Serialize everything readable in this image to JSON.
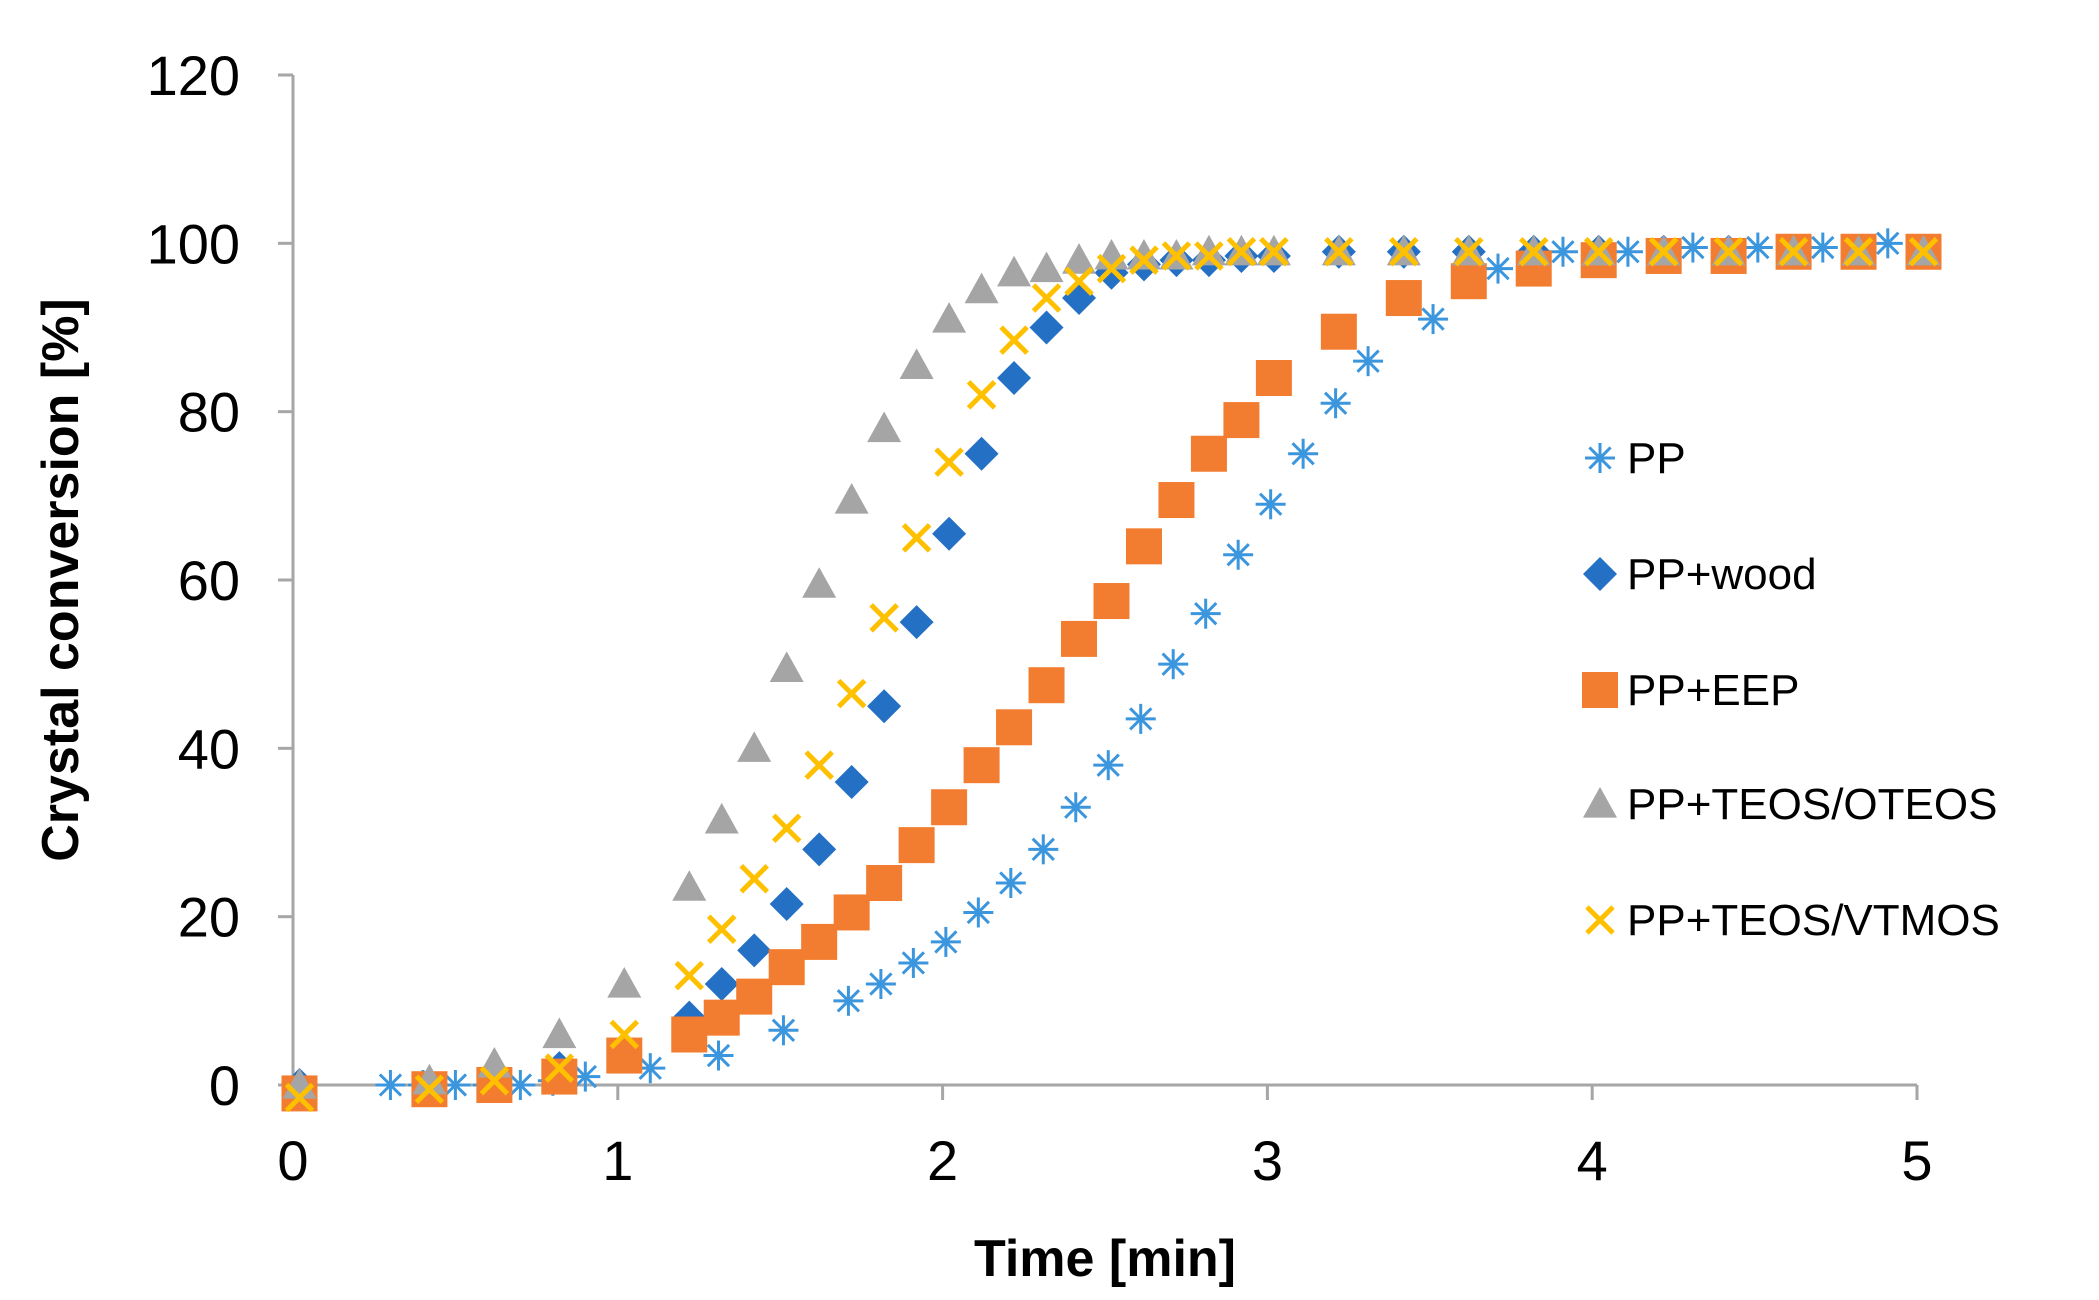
{
  "chart_data": {
    "type": "scatter",
    "title": "",
    "xlabel": "Time [min]",
    "ylabel": "Crystal conversion [%]",
    "xlim": [
      0,
      5
    ],
    "ylim": [
      0,
      120
    ],
    "x_ticks": [
      0,
      1,
      2,
      3,
      4,
      5
    ],
    "y_ticks": [
      0,
      20,
      40,
      60,
      80,
      100,
      120
    ],
    "x_tick_labels": [
      "0",
      "1",
      "2",
      "3",
      "4",
      "5"
    ],
    "y_tick_labels": [
      "0",
      "20",
      "40",
      "60",
      "80",
      "100",
      "120"
    ],
    "grid": false,
    "legend_position": "right",
    "series": [
      {
        "name": "PP",
        "marker": "asterisk",
        "color": "#3b96dd",
        "points": [
          [
            0.3,
            0
          ],
          [
            0.4,
            0
          ],
          [
            0.5,
            0
          ],
          [
            0.6,
            0
          ],
          [
            0.7,
            0
          ],
          [
            0.8,
            0.5
          ],
          [
            0.9,
            1
          ],
          [
            1.1,
            2
          ],
          [
            1.31,
            3.5
          ],
          [
            1.51,
            6.5
          ],
          [
            1.71,
            10
          ],
          [
            1.81,
            12
          ],
          [
            1.91,
            14.5
          ],
          [
            2.01,
            17
          ],
          [
            2.11,
            20.5
          ],
          [
            2.21,
            24
          ],
          [
            2.31,
            28
          ],
          [
            2.41,
            33
          ],
          [
            2.51,
            38
          ],
          [
            2.61,
            43.5
          ],
          [
            2.71,
            50
          ],
          [
            2.81,
            56
          ],
          [
            2.91,
            63
          ],
          [
            3.01,
            69
          ],
          [
            3.11,
            75
          ],
          [
            3.21,
            81
          ],
          [
            3.31,
            86
          ],
          [
            3.51,
            91
          ],
          [
            3.71,
            97
          ],
          [
            3.91,
            99
          ],
          [
            4.11,
            99
          ],
          [
            4.31,
            99.5
          ],
          [
            4.51,
            99.5
          ],
          [
            4.71,
            99.5
          ],
          [
            4.91,
            100
          ]
        ]
      },
      {
        "name": "PP+wood",
        "marker": "diamond",
        "color": "#2370c4",
        "points": [
          [
            0.02,
            0
          ],
          [
            0.42,
            0
          ],
          [
            0.62,
            0.5
          ],
          [
            0.82,
            2
          ],
          [
            1.02,
            4
          ],
          [
            1.22,
            8
          ],
          [
            1.32,
            12
          ],
          [
            1.42,
            16
          ],
          [
            1.52,
            21.5
          ],
          [
            1.62,
            28
          ],
          [
            1.72,
            36
          ],
          [
            1.82,
            45
          ],
          [
            1.92,
            55
          ],
          [
            2.02,
            65.5
          ],
          [
            2.12,
            75
          ],
          [
            2.22,
            84
          ],
          [
            2.32,
            90
          ],
          [
            2.42,
            93.5
          ],
          [
            2.52,
            96.5
          ],
          [
            2.62,
            97.5
          ],
          [
            2.72,
            98
          ],
          [
            2.82,
            98
          ],
          [
            2.92,
            98.5
          ],
          [
            3.02,
            98.5
          ],
          [
            3.22,
            99
          ],
          [
            3.42,
            99
          ],
          [
            3.62,
            99
          ],
          [
            3.82,
            99
          ],
          [
            4.02,
            99
          ],
          [
            4.22,
            99
          ],
          [
            4.42,
            99
          ],
          [
            4.62,
            99
          ],
          [
            4.82,
            99
          ],
          [
            5.02,
            99
          ]
        ]
      },
      {
        "name": "PP+EEP",
        "marker": "square",
        "color": "#f27d30",
        "points": [
          [
            0.02,
            -1
          ],
          [
            0.42,
            -0.5
          ],
          [
            0.62,
            0
          ],
          [
            0.82,
            1
          ],
          [
            1.02,
            3.5
          ],
          [
            1.22,
            6
          ],
          [
            1.32,
            8
          ],
          [
            1.42,
            10.5
          ],
          [
            1.52,
            14
          ],
          [
            1.62,
            17
          ],
          [
            1.72,
            20.5
          ],
          [
            1.82,
            24
          ],
          [
            1.92,
            28.5
          ],
          [
            2.02,
            33
          ],
          [
            2.12,
            38
          ],
          [
            2.22,
            42.5
          ],
          [
            2.32,
            47.5
          ],
          [
            2.42,
            53
          ],
          [
            2.52,
            57.5
          ],
          [
            2.62,
            64
          ],
          [
            2.72,
            69.5
          ],
          [
            2.82,
            75
          ],
          [
            2.92,
            79
          ],
          [
            3.02,
            84
          ],
          [
            3.22,
            89.5
          ],
          [
            3.42,
            93.5
          ],
          [
            3.62,
            95.5
          ],
          [
            3.82,
            97
          ],
          [
            4.02,
            98
          ],
          [
            4.22,
            98.5
          ],
          [
            4.42,
            98.5
          ],
          [
            4.62,
            99
          ],
          [
            4.82,
            99
          ],
          [
            5.02,
            99
          ]
        ]
      },
      {
        "name": "PP+TEOS/OTEOS",
        "marker": "triangle",
        "color": "#a5a5a5",
        "points": [
          [
            0.02,
            0
          ],
          [
            0.42,
            0.5
          ],
          [
            0.62,
            2.5
          ],
          [
            0.82,
            6
          ],
          [
            1.02,
            12
          ],
          [
            1.22,
            23.5
          ],
          [
            1.32,
            31.5
          ],
          [
            1.42,
            40
          ],
          [
            1.52,
            49.5
          ],
          [
            1.62,
            59.5
          ],
          [
            1.72,
            69.5
          ],
          [
            1.82,
            78
          ],
          [
            1.92,
            85.5
          ],
          [
            2.02,
            91
          ],
          [
            2.12,
            94.5
          ],
          [
            2.22,
            96.5
          ],
          [
            2.32,
            97
          ],
          [
            2.42,
            98
          ],
          [
            2.52,
            98.5
          ],
          [
            2.62,
            98.5
          ],
          [
            2.72,
            98.5
          ],
          [
            2.82,
            99
          ],
          [
            2.92,
            99
          ],
          [
            3.02,
            99
          ],
          [
            3.22,
            99
          ],
          [
            3.42,
            99
          ],
          [
            3.62,
            99
          ],
          [
            3.82,
            99
          ],
          [
            4.02,
            99
          ],
          [
            4.22,
            99
          ],
          [
            4.42,
            99
          ],
          [
            4.62,
            99
          ],
          [
            4.82,
            99
          ],
          [
            5.02,
            99
          ]
        ]
      },
      {
        "name": "PP+TEOS/VTMOS",
        "marker": "x",
        "color": "#ffc000",
        "points": [
          [
            0.02,
            -1.5
          ],
          [
            0.42,
            -0.5
          ],
          [
            0.62,
            0.5
          ],
          [
            0.82,
            2
          ],
          [
            1.02,
            6
          ],
          [
            1.22,
            13
          ],
          [
            1.32,
            18.5
          ],
          [
            1.42,
            24.5
          ],
          [
            1.52,
            30.5
          ],
          [
            1.62,
            38
          ],
          [
            1.72,
            46.5
          ],
          [
            1.82,
            55.5
          ],
          [
            1.92,
            65
          ],
          [
            2.02,
            74
          ],
          [
            2.12,
            82
          ],
          [
            2.22,
            88.5
          ],
          [
            2.32,
            93.5
          ],
          [
            2.42,
            95.5
          ],
          [
            2.52,
            97
          ],
          [
            2.62,
            98
          ],
          [
            2.72,
            98.5
          ],
          [
            2.82,
            98.5
          ],
          [
            2.92,
            99
          ],
          [
            3.02,
            99
          ],
          [
            3.22,
            99
          ],
          [
            3.42,
            99
          ],
          [
            3.62,
            99
          ],
          [
            3.82,
            99
          ],
          [
            4.02,
            99
          ],
          [
            4.22,
            99
          ],
          [
            4.42,
            99
          ],
          [
            4.62,
            99
          ],
          [
            4.82,
            99
          ],
          [
            5.02,
            99
          ]
        ]
      }
    ]
  }
}
